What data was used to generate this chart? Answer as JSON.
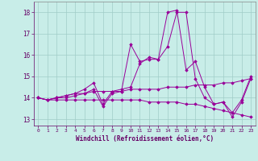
{
  "xlabel": "Windchill (Refroidissement éolien,°C)",
  "background_color": "#c8ede8",
  "line_color": "#990099",
  "xlim": [
    -0.5,
    23.5
  ],
  "ylim": [
    12.7,
    18.5
  ],
  "yticks": [
    13,
    14,
    15,
    16,
    17,
    18
  ],
  "xticks": [
    0,
    1,
    2,
    3,
    4,
    5,
    6,
    7,
    8,
    9,
    10,
    11,
    12,
    13,
    14,
    15,
    16,
    17,
    18,
    19,
    20,
    21,
    22,
    23
  ],
  "series": [
    [
      14.0,
      13.9,
      14.0,
      14.1,
      14.2,
      14.4,
      14.7,
      13.7,
      14.3,
      14.4,
      14.5,
      15.6,
      15.9,
      15.8,
      18.0,
      18.1,
      15.3,
      15.7,
      14.5,
      13.7,
      13.8,
      13.1,
      13.8,
      14.9
    ],
    [
      14.0,
      13.9,
      14.0,
      14.1,
      14.2,
      14.2,
      14.3,
      14.3,
      14.3,
      14.3,
      14.4,
      14.4,
      14.4,
      14.4,
      14.5,
      14.5,
      14.5,
      14.6,
      14.6,
      14.6,
      14.7,
      14.7,
      14.8,
      14.9
    ],
    [
      14.0,
      13.9,
      13.9,
      13.9,
      13.9,
      13.9,
      13.9,
      13.9,
      13.9,
      13.9,
      13.9,
      13.9,
      13.8,
      13.8,
      13.8,
      13.8,
      13.7,
      13.7,
      13.6,
      13.5,
      13.4,
      13.3,
      13.2,
      13.1
    ],
    [
      14.0,
      13.9,
      14.0,
      14.0,
      14.1,
      14.2,
      14.4,
      13.6,
      14.2,
      14.3,
      16.5,
      15.7,
      15.8,
      15.8,
      16.4,
      18.0,
      18.0,
      14.9,
      14.0,
      13.7,
      13.8,
      13.3,
      13.9,
      15.0
    ]
  ]
}
